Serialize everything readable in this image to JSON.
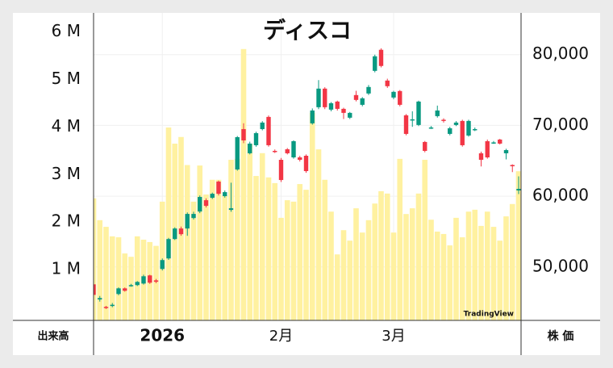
{
  "chart_data": {
    "type": "candlestick",
    "title": "ディスコ",
    "watermark": "TradingView",
    "volume_axis_label": "出来高",
    "price_axis_label": "株 価",
    "up_color": "#089981",
    "down_color": "#f23645",
    "volume_color": "#fff1a0",
    "grid": true,
    "categories": [
      null,
      null,
      null,
      null,
      null,
      null,
      null,
      null,
      null,
      null,
      null,
      "2026",
      null,
      null,
      null,
      null,
      null,
      null,
      null,
      null,
      null,
      null,
      null,
      null,
      null,
      null,
      null,
      null,
      null,
      null,
      "2月",
      null,
      null,
      null,
      null,
      null,
      null,
      null,
      null,
      null,
      null,
      null,
      null,
      null,
      null,
      null,
      null,
      null,
      "3月",
      null,
      null,
      null,
      null,
      null,
      null,
      null,
      null,
      null,
      null,
      null,
      null,
      null,
      null,
      null,
      null,
      null,
      null,
      null,
      null
    ],
    "open": [
      47540,
      45400,
      44350,
      44500,
      46170,
      46970,
      47300,
      47430,
      47650,
      48800,
      48100,
      49710,
      51200,
      53940,
      55430,
      55430,
      56910,
      57830,
      59430,
      59770,
      62060,
      60000,
      58060,
      63770,
      69480,
      66060,
      67200,
      69480,
      71200,
      66400,
      65140,
      66630,
      65480,
      65480,
      65710,
      70290,
      72570,
      75200,
      72230,
      73370,
      72340,
      71090,
      74290,
      72910,
      74510,
      77710,
      80690,
      76340,
      73940,
      74860,
      71430,
      70700,
      70060,
      67660,
      69600,
      71310,
      70800,
      68800,
      70060,
      70630,
      68570,
      69400,
      66060,
      67770,
      67540,
      68000,
      66060,
      64400,
      60800
    ],
    "high": [
      47700,
      45900,
      44500,
      44900,
      47100,
      47100,
      47600,
      48000,
      48900,
      48900,
      48300,
      51200,
      54100,
      55600,
      55700,
      57700,
      57800,
      60100,
      59700,
      60500,
      62200,
      60800,
      61900,
      68500,
      70300,
      67700,
      69100,
      70600,
      71400,
      66600,
      65400,
      66800,
      67900,
      65700,
      65900,
      72400,
      76400,
      75400,
      73300,
      73500,
      72500,
      71900,
      74900,
      74000,
      75700,
      80000,
      80900,
      76600,
      74900,
      75000,
      71600,
      72000,
      73500,
      67800,
      69900,
      72800,
      71000,
      69800,
      70600,
      70800,
      70800,
      69700,
      66300,
      68000,
      67800,
      68100,
      66700,
      64500,
      62800
    ],
    "low": [
      45500,
      45100,
      44050,
      44300,
      46000,
      46500,
      47200,
      47300,
      47500,
      47600,
      47700,
      49500,
      51000,
      53800,
      54400,
      54400,
      56700,
      57600,
      58400,
      59600,
      60100,
      59800,
      57800,
      63600,
      67500,
      65900,
      67000,
      69300,
      67000,
      66100,
      62000,
      65900,
      65300,
      64900,
      63300,
      70100,
      72300,
      72300,
      72000,
      72100,
      70900,
      70900,
      73400,
      72700,
      74300,
      77500,
      78200,
      75300,
      73700,
      72700,
      68600,
      69800,
      69900,
      66200,
      69500,
      71100,
      70400,
      68600,
      69900,
      67000,
      68400,
      69200,
      64200,
      65300,
      67400,
      67300,
      65200,
      63400,
      60300
    ],
    "close": [
      46050,
      45600,
      44200,
      44650,
      46970,
      46630,
      47430,
      47880,
      48680,
      47770,
      47900,
      50970,
      53940,
      55430,
      54630,
      57490,
      57490,
      59890,
      58630,
      60340,
      60340,
      60570,
      58290,
      68340,
      67880,
      67430,
      68910,
      70400,
      67200,
      66280,
      62280,
      66060,
      67770,
      65140,
      63540,
      72110,
      75200,
      72570,
      73140,
      72340,
      71770,
      71770,
      73600,
      73830,
      75430,
      79770,
      78400,
      75540,
      74740,
      72910,
      68800,
      70860,
      73370,
      66400,
      69710,
      72110,
      70630,
      69600,
      70400,
      67200,
      70630,
      69480,
      65140,
      65480,
      67600,
      67430,
      66510,
      64230,
      61030
    ],
    "volume": [
      2500000,
      2040000,
      1900000,
      1700000,
      1680000,
      1340000,
      1270000,
      1700000,
      1630000,
      1580000,
      1500000,
      2430000,
      3990000,
      3650000,
      3790000,
      3200000,
      2430000,
      3190000,
      2580000,
      2890000,
      2890000,
      2560000,
      3310000,
      3330000,
      5640000,
      3650000,
      2970000,
      3450000,
      2940000,
      2820000,
      2090000,
      2460000,
      2430000,
      2800000,
      2680000,
      4300000,
      3530000,
      2890000,
      2220000,
      1320000,
      1830000,
      1610000,
      2290000,
      1780000,
      2040000,
      2390000,
      2650000,
      2600000,
      1780000,
      3330000,
      2170000,
      2290000,
      2600000,
      3310000,
      2050000,
      1800000,
      1750000,
      1510000,
      2090000,
      1680000,
      2220000,
      2260000,
      1920000,
      2220000,
      1900000,
      1610000,
      2120000,
      2380000,
      3070000
    ],
    "ylim": [
      42900,
      85900
    ],
    "yticks": [
      {
        "value": 50000,
        "label": "50,000"
      },
      {
        "value": 60000,
        "label": "60,000"
      },
      {
        "value": 70000,
        "label": "70,000"
      },
      {
        "value": 80000,
        "label": "80,000"
      }
    ],
    "volume_lim": [
      0,
      6400000
    ],
    "volume_ticks": [
      {
        "value": 1000000,
        "label": "1 M"
      },
      {
        "value": 2000000,
        "label": "2 M"
      },
      {
        "value": 3000000,
        "label": "3 M"
      },
      {
        "value": 4000000,
        "label": "4 M"
      },
      {
        "value": 5000000,
        "label": "5 M"
      },
      {
        "value": 6000000,
        "label": "6 M"
      }
    ]
  }
}
